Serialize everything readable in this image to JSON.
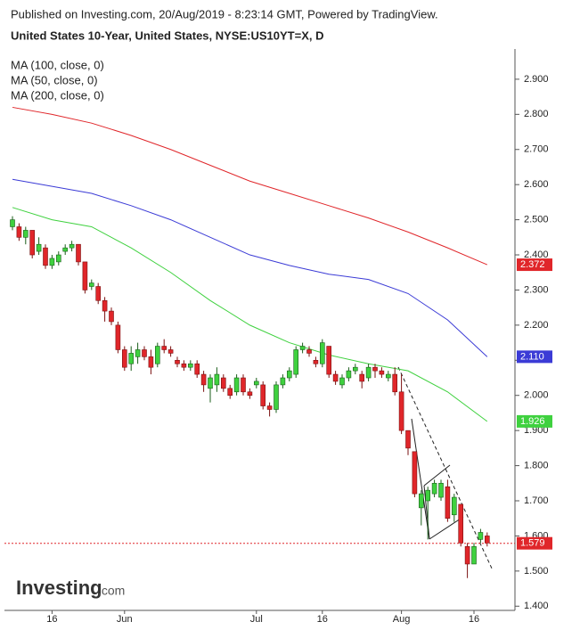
{
  "chart_data": {
    "type": "candlestick",
    "header": "Published on Investing.com, 20/Aug/2019 - 8:23:14 GMT, Powered by TradingView.",
    "title": "United States 10-Year, United States, NYSE:US10YT=X, D",
    "categories": [
      null,
      null,
      null,
      null,
      null,
      null,
      "16",
      null,
      null,
      null,
      null,
      null,
      null,
      null,
      null,
      null,
      null,
      "Jun",
      null,
      null,
      null,
      null,
      null,
      null,
      null,
      null,
      null,
      null,
      null,
      null,
      null,
      null,
      null,
      null,
      null,
      null,
      null,
      "Jul",
      null,
      null,
      null,
      null,
      null,
      null,
      null,
      null,
      null,
      "16",
      null,
      null,
      null,
      null,
      null,
      null,
      null,
      null,
      null,
      null,
      null,
      "Aug",
      null,
      null,
      null,
      null,
      null,
      null,
      null,
      null,
      null,
      null,
      "16",
      null,
      null
    ],
    "open": [
      2.48,
      2.48,
      2.45,
      2.47,
      2.41,
      2.42,
      2.37,
      2.38,
      2.41,
      2.42,
      2.43,
      2.38,
      2.31,
      2.31,
      2.27,
      2.24,
      2.2,
      2.13,
      2.09,
      2.11,
      2.13,
      2.11,
      2.09,
      2.14,
      2.13,
      2.1,
      2.09,
      2.08,
      2.09,
      2.06,
      2.02,
      2.03,
      2.05,
      2.02,
      2.01,
      2.05,
      2.01,
      2.03,
      2.03,
      1.97,
      1.96,
      2.03,
      2.05,
      2.06,
      2.13,
      2.13,
      2.1,
      2.09,
      2.14,
      2.06,
      2.03,
      2.05,
      2.07,
      2.06,
      2.05,
      2.08,
      2.07,
      2.05,
      2.06,
      2.01,
      1.9,
      1.84,
      1.68,
      1.7,
      1.72,
      1.71,
      1.74,
      1.66,
      1.69,
      1.57,
      1.52,
      1.59,
      1.6
    ],
    "high": [
      2.51,
      2.49,
      2.48,
      2.47,
      2.45,
      2.43,
      2.4,
      2.41,
      2.43,
      2.44,
      2.43,
      2.38,
      2.33,
      2.32,
      2.28,
      2.25,
      2.21,
      2.14,
      2.14,
      2.15,
      2.14,
      2.13,
      2.15,
      2.16,
      2.14,
      2.11,
      2.1,
      2.1,
      2.1,
      2.07,
      2.06,
      2.08,
      2.06,
      2.03,
      2.06,
      2.06,
      2.02,
      2.05,
      2.04,
      1.98,
      2.04,
      2.06,
      2.08,
      2.14,
      2.15,
      2.14,
      2.11,
      2.16,
      2.14,
      2.07,
      2.06,
      2.08,
      2.09,
      2.07,
      2.09,
      2.09,
      2.08,
      2.07,
      2.08,
      2.06,
      1.9,
      1.84,
      1.73,
      1.74,
      1.76,
      1.76,
      1.76,
      1.72,
      1.69,
      1.58,
      1.58,
      1.62,
      1.61
    ],
    "low": [
      2.47,
      2.44,
      2.43,
      2.39,
      2.4,
      2.36,
      2.36,
      2.37,
      2.4,
      2.41,
      2.37,
      2.29,
      2.3,
      2.26,
      2.21,
      2.2,
      2.12,
      2.07,
      2.07,
      2.09,
      2.1,
      2.06,
      2.08,
      2.12,
      2.11,
      2.08,
      2.07,
      2.07,
      2.05,
      2.01,
      1.98,
      2.01,
      2.01,
      1.99,
      2.0,
      2.0,
      1.99,
      2.02,
      1.96,
      1.94,
      1.95,
      2.02,
      2.04,
      2.05,
      2.12,
      2.11,
      2.08,
      2.08,
      2.05,
      2.03,
      2.02,
      2.04,
      2.06,
      2.02,
      2.04,
      2.05,
      2.05,
      2.04,
      2.0,
      1.89,
      1.83,
      1.71,
      1.63,
      1.59,
      1.71,
      1.7,
      1.64,
      1.64,
      1.57,
      1.48,
      1.52,
      1.58,
      1.57
    ],
    "close": [
      2.5,
      2.45,
      2.47,
      2.4,
      2.43,
      2.37,
      2.39,
      2.4,
      2.42,
      2.43,
      2.38,
      2.3,
      2.32,
      2.27,
      2.24,
      2.21,
      2.13,
      2.08,
      2.12,
      2.13,
      2.11,
      2.08,
      2.14,
      2.13,
      2.12,
      2.09,
      2.08,
      2.09,
      2.06,
      2.03,
      2.05,
      2.06,
      2.02,
      2.0,
      2.05,
      2.01,
      2.0,
      2.04,
      1.97,
      1.96,
      2.03,
      2.05,
      2.07,
      2.13,
      2.14,
      2.12,
      2.09,
      2.15,
      2.06,
      2.04,
      2.05,
      2.07,
      2.08,
      2.04,
      2.08,
      2.07,
      2.06,
      2.06,
      2.01,
      1.9,
      1.85,
      1.72,
      1.72,
      1.73,
      1.75,
      1.75,
      1.65,
      1.71,
      1.58,
      1.52,
      1.57,
      1.61,
      1.58
    ],
    "up_color": "#3fd13f",
    "down_color": "#e0262a",
    "ylim": [
      1.388,
      2.986
    ],
    "yticks": [
      {
        "value": 1.4,
        "label": "1.400"
      },
      {
        "value": 1.5,
        "label": "1.500"
      },
      {
        "value": 1.6,
        "label": "1.600"
      },
      {
        "value": 1.7,
        "label": "1.700"
      },
      {
        "value": 1.8,
        "label": "1.800"
      },
      {
        "value": 1.9,
        "label": "1.900"
      },
      {
        "value": 2.0,
        "label": "2.000"
      },
      {
        "value": 2.1,
        "label": "2.100"
      },
      {
        "value": 2.2,
        "label": "2.200"
      },
      {
        "value": 2.3,
        "label": "2.300"
      },
      {
        "value": 2.4,
        "label": "2.400"
      },
      {
        "value": 2.5,
        "label": "2.500"
      },
      {
        "value": 2.6,
        "label": "2.600"
      },
      {
        "value": 2.7,
        "label": "2.700"
      },
      {
        "value": 2.8,
        "label": "2.800"
      },
      {
        "value": 2.9,
        "label": "2.900"
      }
    ],
    "grid": false,
    "series": [
      {
        "name": "MA (100, close, 0)",
        "color": "#3b3bd6",
        "x": [
          0,
          6,
          12,
          18,
          24,
          30,
          36,
          42,
          48,
          54,
          60,
          66,
          72
        ],
        "values": [
          2.615,
          2.595,
          2.575,
          2.54,
          2.5,
          2.45,
          2.4,
          2.37,
          2.345,
          2.33,
          2.29,
          2.215,
          2.11
        ],
        "tag": {
          "value": 2.11,
          "label": "2.110"
        }
      },
      {
        "name": "MA (50, close, 0)",
        "color": "#3fd13f",
        "x": [
          0,
          6,
          12,
          18,
          24,
          30,
          36,
          42,
          48,
          54,
          60,
          66,
          72
        ],
        "values": [
          2.535,
          2.5,
          2.48,
          2.42,
          2.35,
          2.27,
          2.2,
          2.15,
          2.115,
          2.09,
          2.07,
          2.01,
          1.926
        ],
        "tag": {
          "value": 1.926,
          "label": "1.926"
        }
      },
      {
        "name": "MA (200, close, 0)",
        "color": "#e0262a",
        "x": [
          0,
          6,
          12,
          18,
          24,
          30,
          36,
          42,
          48,
          54,
          60,
          66,
          72
        ],
        "values": [
          2.82,
          2.8,
          2.775,
          2.74,
          2.7,
          2.655,
          2.61,
          2.575,
          2.54,
          2.505,
          2.465,
          2.42,
          2.372
        ],
        "tag": {
          "value": 2.372,
          "label": "2.372"
        }
      }
    ],
    "last_price": {
      "value": 1.579,
      "label": "1.579",
      "color": "#e0262a"
    },
    "watermark": {
      "main": "Investing",
      "suffix": ".com"
    }
  }
}
